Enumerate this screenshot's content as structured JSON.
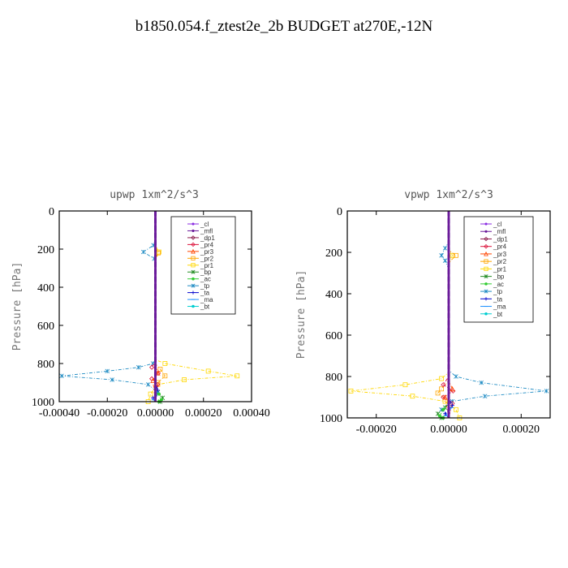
{
  "title": "b1850.054.f_ztest2e_2b  BUDGET at270E,-12N",
  "series_colors": {
    "_cl": "#8a2be2",
    "_mfl": "#6a1b9a",
    "_dp1": "#8b1a4a",
    "_pr4": "#dc143c",
    "_pr3": "#ff4500",
    "_pr2": "#ffa500",
    "_pr1": "#ffd700",
    "_bp": "#228b22",
    "_ac": "#32cd32",
    "_tp": "#1e8bc3",
    "_ta": "#0000cd",
    "_ma": "#1e90ff",
    "_bt": "#00ced1"
  },
  "chart_data": [
    {
      "type": "line",
      "title": "upwp  1xm^2/s^3",
      "ylabel": "Pressure [hPa]",
      "xlim": [
        -0.0004,
        0.0004
      ],
      "ylim": [
        1000,
        0
      ],
      "xticks": [
        "-0.00040",
        "-0.00020",
        "0.00000",
        "0.00020",
        "0.00040"
      ],
      "xtick_values": [
        -0.0004,
        -0.0002,
        0.0,
        0.0002,
        0.0004
      ],
      "yticks": [
        "0",
        "200",
        "400",
        "600",
        "800",
        "1000"
      ],
      "ytick_values": [
        0,
        200,
        400,
        600,
        800,
        1000
      ],
      "legend_position": "top-right",
      "legend": [
        "_cl",
        "_mfl",
        "_dp1",
        "_pr4",
        "_pr3",
        "_pr2",
        "_pr1",
        "_bp",
        "_ac",
        "_tp",
        "_ta",
        "_ma",
        "_bt"
      ],
      "series": [
        {
          "name": "_tp",
          "points": [
            [
              0,
              0
            ],
            [
              0,
              150
            ],
            [
              -8e-06,
              180
            ],
            [
              -5e-05,
              215
            ],
            [
              -5e-06,
              250
            ],
            [
              0,
              300
            ],
            [
              0,
              780
            ],
            [
              -1e-05,
              800
            ],
            [
              -7e-05,
              820
            ],
            [
              -0.0002,
              840
            ],
            [
              -0.00039,
              865
            ],
            [
              -0.00018,
              885
            ],
            [
              -3e-05,
              910
            ],
            [
              1e-05,
              950
            ],
            [
              0,
              1000
            ]
          ]
        },
        {
          "name": "_pr1",
          "points": [
            [
              0,
              0
            ],
            [
              0,
              180
            ],
            [
              1.5e-05,
              215
            ],
            [
              0,
              260
            ],
            [
              0,
              780
            ],
            [
              4e-05,
              800
            ],
            [
              0.00022,
              840
            ],
            [
              0.00034,
              865
            ],
            [
              0.00012,
              885
            ],
            [
              1e-05,
              910
            ],
            [
              -2e-05,
              960
            ],
            [
              -3e-05,
              1000
            ]
          ]
        },
        {
          "name": "_pr2",
          "points": [
            [
              0,
              0
            ],
            [
              0,
              190
            ],
            [
              1.2e-05,
              220
            ],
            [
              0,
              250
            ],
            [
              0,
              800
            ],
            [
              2e-05,
              830
            ],
            [
              4e-05,
              865
            ],
            [
              1e-05,
              900
            ],
            [
              0,
              1000
            ]
          ]
        },
        {
          "name": "_pr4",
          "points": [
            [
              0,
              0
            ],
            [
              0,
              790
            ],
            [
              -1.5e-05,
              820
            ],
            [
              1.2e-05,
              850
            ],
            [
              -1.5e-05,
              880
            ],
            [
              1e-05,
              910
            ],
            [
              0,
              1000
            ]
          ]
        },
        {
          "name": "_pr3",
          "points": [
            [
              0,
              0
            ],
            [
              0,
              800
            ],
            [
              1e-05,
              850
            ],
            [
              -1e-05,
              890
            ],
            [
              0,
              1000
            ]
          ]
        },
        {
          "name": "_bp",
          "points": [
            [
              0,
              0
            ],
            [
              0,
              920
            ],
            [
              1e-05,
              950
            ],
            [
              3e-05,
              980
            ],
            [
              2e-05,
              1000
            ]
          ]
        },
        {
          "name": "_ac",
          "points": [
            [
              0,
              0
            ],
            [
              0,
              930
            ],
            [
              1.5e-05,
              960
            ],
            [
              2.5e-05,
              990
            ],
            [
              1.5e-05,
              1000
            ]
          ]
        },
        {
          "name": "_ta",
          "points": [
            [
              0,
              0
            ],
            [
              0,
              900
            ],
            [
              1e-05,
              940
            ],
            [
              -1e-05,
              980
            ],
            [
              0,
              1000
            ]
          ]
        },
        {
          "name": "_ma",
          "points": [
            [
              0,
              0
            ],
            [
              0,
              910
            ],
            [
              8e-06,
              950
            ],
            [
              -8e-06,
              990
            ],
            [
              0,
              1000
            ]
          ]
        },
        {
          "name": "_bt",
          "points": [
            [
              0,
              0
            ],
            [
              0,
              1000
            ]
          ]
        },
        {
          "name": "_dp1",
          "points": [
            [
              0,
              0
            ],
            [
              0,
              1000
            ]
          ]
        },
        {
          "name": "_cl",
          "points": [
            [
              0,
              0
            ],
            [
              0,
              1000
            ]
          ]
        },
        {
          "name": "_mfl",
          "points": [
            [
              0,
              0
            ],
            [
              0,
              1000
            ]
          ]
        }
      ]
    },
    {
      "type": "line",
      "title": "vpwp  1xm^2/s^3",
      "ylabel": "Pressure [hPa]",
      "xlim": [
        -0.00028,
        0.00028
      ],
      "ylim": [
        1000,
        0
      ],
      "xticks": [
        "-0.00020",
        "0.00000",
        "0.00020"
      ],
      "xtick_values": [
        -0.0002,
        0.0,
        0.0002
      ],
      "yticks": [
        "0",
        "200",
        "400",
        "600",
        "800",
        "1000"
      ],
      "ytick_values": [
        0,
        200,
        400,
        600,
        800,
        1000
      ],
      "legend_position": "top-right",
      "legend": [
        "_cl",
        "_mfl",
        "_dp1",
        "_pr4",
        "_pr3",
        "_pr2",
        "_pr1",
        "_bp",
        "_ac",
        "_tp",
        "_ta",
        "_ma",
        "_bt"
      ],
      "series": [
        {
          "name": "_pr1",
          "points": [
            [
              0,
              0
            ],
            [
              0,
              180
            ],
            [
              1e-05,
              215
            ],
            [
              0,
              260
            ],
            [
              0,
              780
            ],
            [
              -2e-05,
              810
            ],
            [
              -0.00012,
              840
            ],
            [
              -0.00027,
              870
            ],
            [
              -0.0001,
              895
            ],
            [
              -1e-05,
              920
            ],
            [
              2e-05,
              960
            ],
            [
              3e-05,
              1000
            ]
          ]
        },
        {
          "name": "_tp",
          "points": [
            [
              0,
              0
            ],
            [
              0,
              150
            ],
            [
              -1e-05,
              180
            ],
            [
              -2e-05,
              215
            ],
            [
              -1e-05,
              240
            ],
            [
              0,
              280
            ],
            [
              0,
              770
            ],
            [
              2e-05,
              800
            ],
            [
              9e-05,
              830
            ],
            [
              0.00027,
              870
            ],
            [
              0.0001,
              895
            ],
            [
              1e-05,
              920
            ],
            [
              -2e-05,
              960
            ],
            [
              0,
              1000
            ]
          ]
        },
        {
          "name": "_pr2",
          "points": [
            [
              0,
              0
            ],
            [
              0,
              190
            ],
            [
              2e-05,
              215
            ],
            [
              0,
              250
            ],
            [
              0,
              300
            ],
            [
              0,
              820
            ],
            [
              -2e-05,
              860
            ],
            [
              -3e-05,
              880
            ],
            [
              0,
              920
            ],
            [
              0,
              1000
            ]
          ]
        },
        {
          "name": "_pr4",
          "points": [
            [
              0,
              0
            ],
            [
              0,
              800
            ],
            [
              -1.5e-05,
              840
            ],
            [
              1.2e-05,
              870
            ],
            [
              -1.5e-05,
              900
            ],
            [
              1e-05,
              930
            ],
            [
              0,
              1000
            ]
          ]
        },
        {
          "name": "_pr3",
          "points": [
            [
              0,
              0
            ],
            [
              0,
              820
            ],
            [
              1e-05,
              860
            ],
            [
              -1e-05,
              900
            ],
            [
              0,
              1000
            ]
          ]
        },
        {
          "name": "_bp",
          "points": [
            [
              0,
              0
            ],
            [
              0,
              920
            ],
            [
              -1e-05,
              950
            ],
            [
              -3e-05,
              980
            ],
            [
              -2e-05,
              1000
            ]
          ]
        },
        {
          "name": "_ac",
          "points": [
            [
              0,
              0
            ],
            [
              0,
              930
            ],
            [
              -1.5e-05,
              960
            ],
            [
              -2.5e-05,
              990
            ],
            [
              -1.5e-05,
              1000
            ]
          ]
        },
        {
          "name": "_ta",
          "points": [
            [
              0,
              0
            ],
            [
              0,
              900
            ],
            [
              1e-05,
              940
            ],
            [
              -1e-05,
              980
            ],
            [
              0,
              1000
            ]
          ]
        },
        {
          "name": "_ma",
          "points": [
            [
              0,
              0
            ],
            [
              0,
              910
            ],
            [
              8e-06,
              950
            ],
            [
              -8e-06,
              990
            ],
            [
              0,
              1000
            ]
          ]
        },
        {
          "name": "_bt",
          "points": [
            [
              0,
              0
            ],
            [
              0,
              1000
            ]
          ]
        },
        {
          "name": "_dp1",
          "points": [
            [
              0,
              0
            ],
            [
              0,
              1000
            ]
          ]
        },
        {
          "name": "_cl",
          "points": [
            [
              0,
              0
            ],
            [
              0,
              1000
            ]
          ]
        },
        {
          "name": "_mfl",
          "points": [
            [
              0,
              0
            ],
            [
              0,
              1000
            ]
          ]
        }
      ]
    }
  ]
}
